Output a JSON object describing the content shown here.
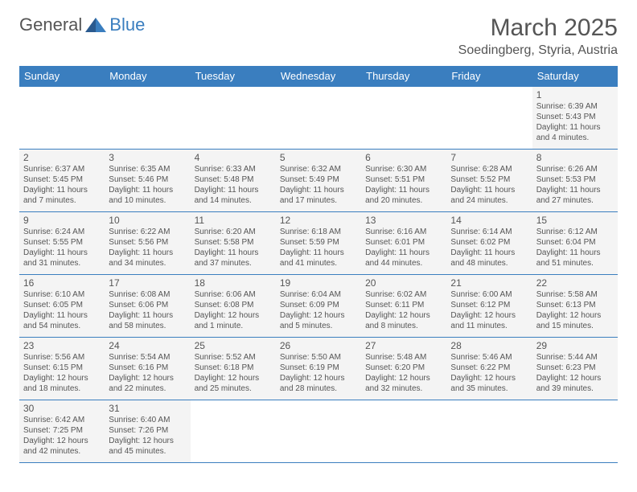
{
  "logo": {
    "general": "General",
    "blue": "Blue"
  },
  "title": {
    "month": "March 2025",
    "location": "Soedingberg, Styria, Austria"
  },
  "colors": {
    "header_bg": "#3a7ebf",
    "cell_bg": "#f4f4f4",
    "border": "#3a7ebf",
    "text": "#555"
  },
  "headers": [
    "Sunday",
    "Monday",
    "Tuesday",
    "Wednesday",
    "Thursday",
    "Friday",
    "Saturday"
  ],
  "weeks": [
    [
      null,
      null,
      null,
      null,
      null,
      null,
      {
        "n": "1",
        "sr": "Sunrise: 6:39 AM",
        "ss": "Sunset: 5:43 PM",
        "dl": "Daylight: 11 hours and 4 minutes."
      }
    ],
    [
      {
        "n": "2",
        "sr": "Sunrise: 6:37 AM",
        "ss": "Sunset: 5:45 PM",
        "dl": "Daylight: 11 hours and 7 minutes."
      },
      {
        "n": "3",
        "sr": "Sunrise: 6:35 AM",
        "ss": "Sunset: 5:46 PM",
        "dl": "Daylight: 11 hours and 10 minutes."
      },
      {
        "n": "4",
        "sr": "Sunrise: 6:33 AM",
        "ss": "Sunset: 5:48 PM",
        "dl": "Daylight: 11 hours and 14 minutes."
      },
      {
        "n": "5",
        "sr": "Sunrise: 6:32 AM",
        "ss": "Sunset: 5:49 PM",
        "dl": "Daylight: 11 hours and 17 minutes."
      },
      {
        "n": "6",
        "sr": "Sunrise: 6:30 AM",
        "ss": "Sunset: 5:51 PM",
        "dl": "Daylight: 11 hours and 20 minutes."
      },
      {
        "n": "7",
        "sr": "Sunrise: 6:28 AM",
        "ss": "Sunset: 5:52 PM",
        "dl": "Daylight: 11 hours and 24 minutes."
      },
      {
        "n": "8",
        "sr": "Sunrise: 6:26 AM",
        "ss": "Sunset: 5:53 PM",
        "dl": "Daylight: 11 hours and 27 minutes."
      }
    ],
    [
      {
        "n": "9",
        "sr": "Sunrise: 6:24 AM",
        "ss": "Sunset: 5:55 PM",
        "dl": "Daylight: 11 hours and 31 minutes."
      },
      {
        "n": "10",
        "sr": "Sunrise: 6:22 AM",
        "ss": "Sunset: 5:56 PM",
        "dl": "Daylight: 11 hours and 34 minutes."
      },
      {
        "n": "11",
        "sr": "Sunrise: 6:20 AM",
        "ss": "Sunset: 5:58 PM",
        "dl": "Daylight: 11 hours and 37 minutes."
      },
      {
        "n": "12",
        "sr": "Sunrise: 6:18 AM",
        "ss": "Sunset: 5:59 PM",
        "dl": "Daylight: 11 hours and 41 minutes."
      },
      {
        "n": "13",
        "sr": "Sunrise: 6:16 AM",
        "ss": "Sunset: 6:01 PM",
        "dl": "Daylight: 11 hours and 44 minutes."
      },
      {
        "n": "14",
        "sr": "Sunrise: 6:14 AM",
        "ss": "Sunset: 6:02 PM",
        "dl": "Daylight: 11 hours and 48 minutes."
      },
      {
        "n": "15",
        "sr": "Sunrise: 6:12 AM",
        "ss": "Sunset: 6:04 PM",
        "dl": "Daylight: 11 hours and 51 minutes."
      }
    ],
    [
      {
        "n": "16",
        "sr": "Sunrise: 6:10 AM",
        "ss": "Sunset: 6:05 PM",
        "dl": "Daylight: 11 hours and 54 minutes."
      },
      {
        "n": "17",
        "sr": "Sunrise: 6:08 AM",
        "ss": "Sunset: 6:06 PM",
        "dl": "Daylight: 11 hours and 58 minutes."
      },
      {
        "n": "18",
        "sr": "Sunrise: 6:06 AM",
        "ss": "Sunset: 6:08 PM",
        "dl": "Daylight: 12 hours and 1 minute."
      },
      {
        "n": "19",
        "sr": "Sunrise: 6:04 AM",
        "ss": "Sunset: 6:09 PM",
        "dl": "Daylight: 12 hours and 5 minutes."
      },
      {
        "n": "20",
        "sr": "Sunrise: 6:02 AM",
        "ss": "Sunset: 6:11 PM",
        "dl": "Daylight: 12 hours and 8 minutes."
      },
      {
        "n": "21",
        "sr": "Sunrise: 6:00 AM",
        "ss": "Sunset: 6:12 PM",
        "dl": "Daylight: 12 hours and 11 minutes."
      },
      {
        "n": "22",
        "sr": "Sunrise: 5:58 AM",
        "ss": "Sunset: 6:13 PM",
        "dl": "Daylight: 12 hours and 15 minutes."
      }
    ],
    [
      {
        "n": "23",
        "sr": "Sunrise: 5:56 AM",
        "ss": "Sunset: 6:15 PM",
        "dl": "Daylight: 12 hours and 18 minutes."
      },
      {
        "n": "24",
        "sr": "Sunrise: 5:54 AM",
        "ss": "Sunset: 6:16 PM",
        "dl": "Daylight: 12 hours and 22 minutes."
      },
      {
        "n": "25",
        "sr": "Sunrise: 5:52 AM",
        "ss": "Sunset: 6:18 PM",
        "dl": "Daylight: 12 hours and 25 minutes."
      },
      {
        "n": "26",
        "sr": "Sunrise: 5:50 AM",
        "ss": "Sunset: 6:19 PM",
        "dl": "Daylight: 12 hours and 28 minutes."
      },
      {
        "n": "27",
        "sr": "Sunrise: 5:48 AM",
        "ss": "Sunset: 6:20 PM",
        "dl": "Daylight: 12 hours and 32 minutes."
      },
      {
        "n": "28",
        "sr": "Sunrise: 5:46 AM",
        "ss": "Sunset: 6:22 PM",
        "dl": "Daylight: 12 hours and 35 minutes."
      },
      {
        "n": "29",
        "sr": "Sunrise: 5:44 AM",
        "ss": "Sunset: 6:23 PM",
        "dl": "Daylight: 12 hours and 39 minutes."
      }
    ],
    [
      {
        "n": "30",
        "sr": "Sunrise: 6:42 AM",
        "ss": "Sunset: 7:25 PM",
        "dl": "Daylight: 12 hours and 42 minutes."
      },
      {
        "n": "31",
        "sr": "Sunrise: 6:40 AM",
        "ss": "Sunset: 7:26 PM",
        "dl": "Daylight: 12 hours and 45 minutes."
      },
      null,
      null,
      null,
      null,
      null
    ]
  ]
}
